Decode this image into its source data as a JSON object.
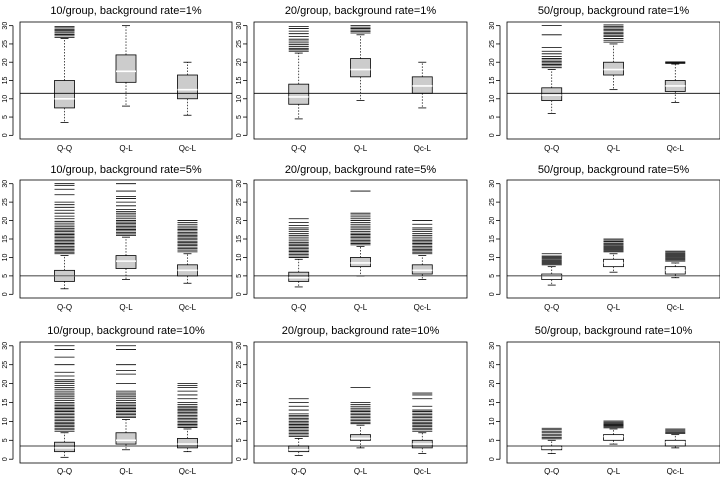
{
  "chart_data": [
    {
      "type": "boxplot",
      "title": "10/group, background rate=1%",
      "categories": [
        "Q-Q",
        "Q-L",
        "Qc-L"
      ],
      "ylim": [
        -1,
        31
      ],
      "yticks": [
        0,
        5,
        10,
        15,
        20,
        25,
        30
      ],
      "reference_line": 11.5,
      "boxes": [
        {
          "name": "Q-Q",
          "lower_whisker": 3.5,
          "q1": 7.5,
          "median": 10,
          "q3": 15,
          "upper_whisker": 26.5,
          "fill": "#cccccc",
          "outliers": [
            26.8,
            27.2,
            27.6,
            28,
            28.3,
            28.7,
            29,
            29.4,
            29.8
          ]
        },
        {
          "name": "Q-L",
          "lower_whisker": 8,
          "q1": 14.5,
          "median": 17.5,
          "q3": 22,
          "upper_whisker": 30,
          "fill": "#cccccc",
          "outliers": []
        },
        {
          "name": "Qc-L",
          "lower_whisker": 5.5,
          "q1": 10,
          "median": 12.5,
          "q3": 16.5,
          "upper_whisker": 20,
          "fill": "#cccccc",
          "outliers": []
        }
      ]
    },
    {
      "type": "boxplot",
      "title": "20/group, background rate=1%",
      "categories": [
        "Q-Q",
        "Q-L",
        "Qc-L"
      ],
      "ylim": [
        -1,
        31
      ],
      "yticks": [
        0,
        5,
        10,
        15,
        20,
        25,
        30
      ],
      "reference_line": 11.5,
      "boxes": [
        {
          "name": "Q-Q",
          "lower_whisker": 4.5,
          "q1": 8.5,
          "median": 10.5,
          "q3": 14,
          "upper_whisker": 22.5,
          "fill": "#cccccc",
          "outliers": [
            23,
            23.4,
            23.8,
            24.3,
            24.8,
            25.3,
            25.8,
            26.3,
            27,
            27.8,
            28.5,
            29.2,
            29.8
          ]
        },
        {
          "name": "Q-L",
          "lower_whisker": 9.5,
          "q1": 16,
          "median": 18,
          "q3": 21,
          "upper_whisker": 27.5,
          "fill": "#cccccc",
          "outliers": [
            28,
            28.4,
            28.8,
            29.2,
            29.6,
            30
          ]
        },
        {
          "name": "Qc-L",
          "lower_whisker": 7.5,
          "q1": 11.5,
          "median": 13.5,
          "q3": 16,
          "upper_whisker": 20,
          "fill": "#cccccc",
          "outliers": []
        }
      ]
    },
    {
      "type": "boxplot",
      "title": "50/group, background rate=1%",
      "categories": [
        "Q-Q",
        "Q-L",
        "Qc-L"
      ],
      "ylim": [
        -1,
        31
      ],
      "yticks": [
        0,
        5,
        10,
        15,
        20,
        25,
        30
      ],
      "reference_line": 11.5,
      "boxes": [
        {
          "name": "Q-Q",
          "lower_whisker": 6,
          "q1": 9.5,
          "median": 11,
          "q3": 13,
          "upper_whisker": 18,
          "fill": "#cccccc",
          "outliers": [
            18.5,
            19,
            19.4,
            19.8,
            20.2,
            20.6,
            21,
            21.6,
            22.3,
            23,
            24,
            27.5,
            30
          ]
        },
        {
          "name": "Q-L",
          "lower_whisker": 12.5,
          "q1": 16.5,
          "median": 18,
          "q3": 20,
          "upper_whisker": 25,
          "fill": "#cccccc",
          "outliers": [
            25.5,
            26,
            26.5,
            27,
            27.4,
            27.8,
            28.2,
            28.6,
            29,
            29.4,
            29.8,
            30.2
          ]
        },
        {
          "name": "Qc-L",
          "lower_whisker": 9,
          "q1": 12,
          "median": 13.5,
          "q3": 15,
          "upper_whisker": 19.5,
          "fill": "#cccccc",
          "outliers": [
            19.7,
            19.9,
            20.1
          ]
        }
      ]
    },
    {
      "type": "boxplot",
      "title": "10/group, background rate=5%",
      "categories": [
        "Q-Q",
        "Q-L",
        "Qc-L"
      ],
      "ylim": [
        -1,
        31
      ],
      "yticks": [
        0,
        5,
        10,
        15,
        20,
        25,
        30
      ],
      "reference_line": 5,
      "boxes": [
        {
          "name": "Q-Q",
          "lower_whisker": 1.5,
          "q1": 3.5,
          "median": 5,
          "q3": 6.5,
          "upper_whisker": 10.5,
          "fill": "#cccccc",
          "outliers": [
            11,
            11.4,
            11.8,
            12.2,
            12.6,
            13,
            13.4,
            13.8,
            14.2,
            14.6,
            15,
            15.4,
            15.8,
            16.2,
            16.6,
            17,
            17.4,
            17.8,
            18.3,
            18.8,
            19.3,
            19.8,
            20.5,
            21.2,
            22,
            22.8,
            23.6,
            24.3,
            25,
            27,
            28.5,
            29.5,
            30
          ]
        },
        {
          "name": "Q-L",
          "lower_whisker": 4,
          "q1": 7,
          "median": 9,
          "q3": 10.5,
          "upper_whisker": 15.5,
          "fill": "#cccccc",
          "outliers": [
            16,
            16.4,
            16.8,
            17.2,
            17.6,
            18,
            18.4,
            18.8,
            19.2,
            19.6,
            20,
            20.5,
            21,
            21.5,
            22,
            22.5,
            23,
            24,
            25,
            26,
            26.5,
            28,
            30
          ]
        },
        {
          "name": "Qc-L",
          "lower_whisker": 3,
          "q1": 5,
          "median": 6.5,
          "q3": 8,
          "upper_whisker": 11,
          "fill": "#cccccc",
          "outliers": [
            11.5,
            12,
            12.4,
            12.8,
            13.2,
            13.6,
            14,
            14.4,
            14.8,
            15.2,
            15.6,
            16,
            16.4,
            16.8,
            17.2,
            17.6,
            18,
            18.5,
            19,
            19.5,
            20
          ]
        }
      ]
    },
    {
      "type": "boxplot",
      "title": "20/group, background rate=5%",
      "categories": [
        "Q-Q",
        "Q-L",
        "Qc-L"
      ],
      "ylim": [
        -1,
        31
      ],
      "yticks": [
        0,
        5,
        10,
        15,
        20,
        25,
        30
      ],
      "reference_line": 5,
      "boxes": [
        {
          "name": "Q-Q",
          "lower_whisker": 2,
          "q1": 3.5,
          "median": 4.5,
          "q3": 6,
          "upper_whisker": 9.5,
          "fill": "#cccccc",
          "outliers": [
            10,
            10.4,
            10.8,
            11.2,
            11.6,
            12,
            12.4,
            12.8,
            13.2,
            13.6,
            14,
            14.5,
            15,
            15.5,
            16,
            16.5,
            17,
            17.5,
            18,
            18.7,
            19.5,
            20.5
          ]
        },
        {
          "name": "Q-L",
          "lower_whisker": 5,
          "q1": 7.5,
          "median": 8.5,
          "q3": 10,
          "upper_whisker": 13,
          "fill": "#cccccc",
          "outliers": [
            13.4,
            13.8,
            14.2,
            14.6,
            15,
            15.4,
            15.8,
            16.2,
            16.6,
            17,
            17.5,
            18,
            18.5,
            19,
            19.5,
            20,
            20.5,
            21,
            21.5,
            22,
            28
          ]
        },
        {
          "name": "Qc-L",
          "lower_whisker": 4,
          "q1": 5.5,
          "median": 6.5,
          "q3": 8,
          "upper_whisker": 10.5,
          "fill": "#cccccc",
          "outliers": [
            11,
            11.4,
            11.8,
            12.2,
            12.6,
            13,
            13.4,
            13.8,
            14.2,
            14.6,
            15,
            15.5,
            16,
            16.5,
            17,
            17.5,
            18,
            19,
            20
          ]
        }
      ]
    },
    {
      "type": "boxplot",
      "title": "50/group, background rate=5%",
      "categories": [
        "Q-Q",
        "Q-L",
        "Qc-L"
      ],
      "ylim": [
        -1,
        31
      ],
      "yticks": [
        0,
        5,
        10,
        15,
        20,
        25,
        30
      ],
      "reference_line": 5,
      "boxes": [
        {
          "name": "Q-Q",
          "lower_whisker": 2.5,
          "q1": 4,
          "median": 5,
          "q3": 5.5,
          "upper_whisker": 7.5,
          "fill": "#ffffff",
          "outliers": [
            8,
            8.3,
            8.6,
            8.9,
            9.2,
            9.5,
            9.8,
            10.1,
            10.4,
            11
          ]
        },
        {
          "name": "Q-L",
          "lower_whisker": 6,
          "q1": 7.5,
          "median": 8.5,
          "q3": 9.5,
          "upper_whisker": 11,
          "fill": "#ffffff",
          "outliers": [
            11.5,
            11.8,
            12.1,
            12.4,
            12.7,
            13,
            13.3,
            13.6,
            13.9,
            14.3,
            14.7,
            15
          ]
        },
        {
          "name": "Qc-L",
          "lower_whisker": 4.5,
          "q1": 5.5,
          "median": 6.5,
          "q3": 7.5,
          "upper_whisker": 8.5,
          "fill": "#ffffff",
          "outliers": [
            9,
            9.3,
            9.6,
            9.9,
            10.2,
            10.5,
            10.8,
            11.1,
            11.4,
            11.7
          ]
        }
      ]
    },
    {
      "type": "boxplot",
      "title": "10/group, background rate=10%",
      "categories": [
        "Q-Q",
        "Q-L",
        "Qc-L"
      ],
      "ylim": [
        -1,
        31
      ],
      "yticks": [
        0,
        5,
        10,
        15,
        20,
        25,
        30
      ],
      "reference_line": 3.5,
      "boxes": [
        {
          "name": "Q-Q",
          "lower_whisker": 0.5,
          "q1": 2,
          "median": 3,
          "q3": 4.5,
          "upper_whisker": 7,
          "fill": "#cccccc",
          "outliers": [
            7.4,
            7.8,
            8.2,
            8.6,
            9,
            9.4,
            9.8,
            10.2,
            10.6,
            11,
            11.4,
            11.8,
            12.2,
            12.6,
            13,
            13.4,
            13.8,
            14.2,
            14.6,
            15,
            15.5,
            16,
            16.5,
            17,
            17.5,
            18,
            18.5,
            19,
            19.5,
            20,
            20.5,
            21,
            22,
            23,
            25,
            27,
            29,
            30
          ]
        },
        {
          "name": "Q-L",
          "lower_whisker": 2.5,
          "q1": 4,
          "median": 5,
          "q3": 7,
          "upper_whisker": 10.5,
          "fill": "#cccccc",
          "outliers": [
            11,
            11.4,
            11.8,
            12.2,
            12.6,
            13,
            13.4,
            13.8,
            14.2,
            14.6,
            15,
            15.5,
            16,
            16.5,
            17,
            17.5,
            18,
            20,
            22.5,
            23.5,
            25,
            29,
            30
          ]
        },
        {
          "name": "Qc-L",
          "lower_whisker": 2,
          "q1": 3,
          "median": 4,
          "q3": 5.5,
          "upper_whisker": 8,
          "fill": "#cccccc",
          "outliers": [
            8.4,
            8.8,
            9.2,
            9.6,
            10,
            10.4,
            10.8,
            11.2,
            11.6,
            12,
            12.4,
            12.8,
            13.2,
            13.6,
            14,
            14.5,
            15,
            16,
            17,
            18,
            19,
            19.5,
            20
          ]
        }
      ]
    },
    {
      "type": "boxplot",
      "title": "20/group, background rate=10%",
      "categories": [
        "Q-Q",
        "Q-L",
        "Qc-L"
      ],
      "ylim": [
        -1,
        31
      ],
      "yticks": [
        0,
        5,
        10,
        15,
        20,
        25,
        30
      ],
      "reference_line": 3.5,
      "boxes": [
        {
          "name": "Q-Q",
          "lower_whisker": 1,
          "q1": 2,
          "median": 2.5,
          "q3": 3.5,
          "upper_whisker": 5.5,
          "fill": "#cccccc",
          "outliers": [
            6,
            6.4,
            6.8,
            7.2,
            7.6,
            8,
            8.4,
            8.8,
            9.2,
            9.6,
            10,
            10.4,
            10.8,
            11.2,
            11.6,
            12,
            13,
            14,
            15,
            16
          ]
        },
        {
          "name": "Q-L",
          "lower_whisker": 3,
          "q1": 5,
          "median": 5.5,
          "q3": 6.5,
          "upper_whisker": 9,
          "fill": "#cccccc",
          "outliers": [
            9.4,
            9.8,
            10.2,
            10.6,
            11,
            11.4,
            11.8,
            12.2,
            12.6,
            13,
            13.5,
            14,
            14.5,
            15,
            19
          ]
        },
        {
          "name": "Qc-L",
          "lower_whisker": 1.5,
          "q1": 3,
          "median": 4,
          "q3": 5,
          "upper_whisker": 7,
          "fill": "#cccccc",
          "outliers": [
            7.4,
            7.8,
            8.2,
            8.6,
            9,
            9.4,
            9.8,
            10.2,
            10.6,
            11,
            11.4,
            11.8,
            12.2,
            12.6,
            13,
            14,
            16,
            17,
            17.5
          ]
        }
      ]
    },
    {
      "type": "boxplot",
      "title": "50/group, background rate=10%",
      "categories": [
        "Q-Q",
        "Q-L",
        "Qc-L"
      ],
      "ylim": [
        -1,
        31
      ],
      "yticks": [
        0,
        5,
        10,
        15,
        20,
        25,
        30
      ],
      "reference_line": 3.5,
      "boxes": [
        {
          "name": "Q-Q",
          "lower_whisker": 1.5,
          "q1": 2.5,
          "median": 3,
          "q3": 3.5,
          "upper_whisker": 5,
          "fill": "#ffffff",
          "outliers": [
            5.4,
            5.8,
            6.2,
            6.6,
            7,
            7.4,
            7.8,
            8.2
          ]
        },
        {
          "name": "Q-L",
          "lower_whisker": 4,
          "q1": 5,
          "median": 6,
          "q3": 6.5,
          "upper_whisker": 8,
          "fill": "#ffffff",
          "outliers": [
            8.3,
            8.6,
            8.9,
            9.2,
            9.5,
            9.8,
            10.1
          ]
        },
        {
          "name": "Qc-L",
          "lower_whisker": 3,
          "q1": 3.5,
          "median": 4.5,
          "q3": 5,
          "upper_whisker": 6.5,
          "fill": "#ffffff",
          "outliers": [
            6.8,
            7.1,
            7.4,
            7.7,
            8
          ]
        }
      ]
    }
  ]
}
